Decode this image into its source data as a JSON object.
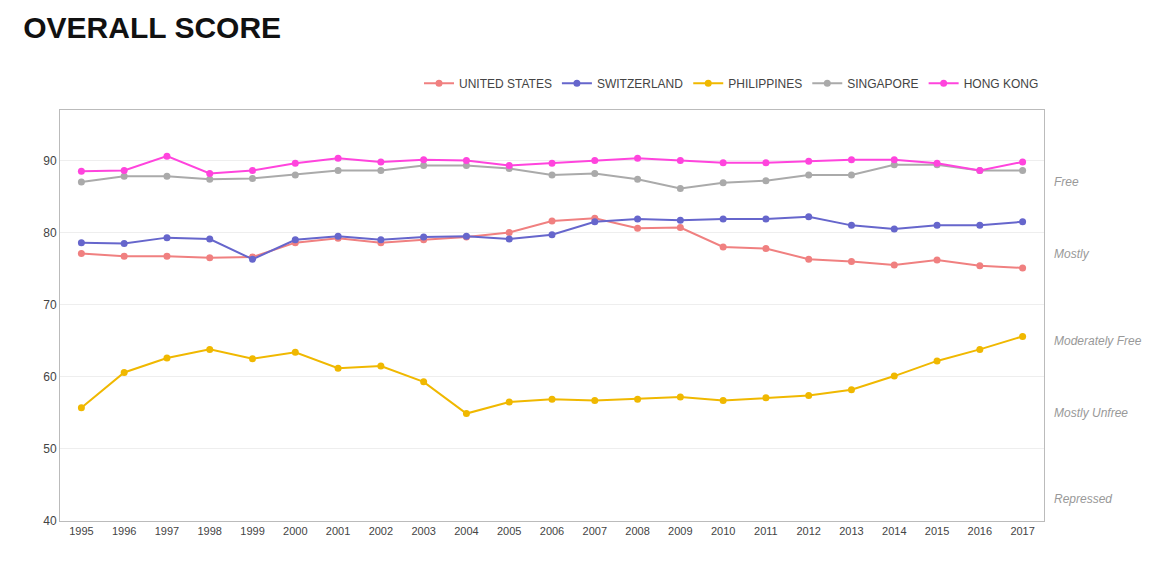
{
  "chart_data": {
    "type": "line",
    "title": "OVERALL SCORE",
    "x": [
      1995,
      1996,
      1997,
      1998,
      1999,
      2000,
      2001,
      2002,
      2003,
      2004,
      2005,
      2006,
      2007,
      2008,
      2009,
      2010,
      2011,
      2012,
      2013,
      2014,
      2015,
      2016,
      2017
    ],
    "series": [
      {
        "name": "UNITED STATES",
        "color": "#f08080",
        "values": [
          77.1,
          76.7,
          76.7,
          76.5,
          76.6,
          78.6,
          79.2,
          78.6,
          79.0,
          79.4,
          80.0,
          81.6,
          82.0,
          80.6,
          80.7,
          78.0,
          77.8,
          76.3,
          76.0,
          75.5,
          76.2,
          75.4,
          75.1
        ]
      },
      {
        "name": "SWITZERLAND",
        "color": "#6666cc",
        "values": [
          78.6,
          78.5,
          79.3,
          79.1,
          76.3,
          79.0,
          79.5,
          79.0,
          79.4,
          79.5,
          79.1,
          79.7,
          81.5,
          81.9,
          81.7,
          81.9,
          81.9,
          82.2,
          81.0,
          80.5,
          81.0,
          81.0,
          81.5
        ]
      },
      {
        "name": "PHILIPPINES",
        "color": "#f0b800",
        "values": [
          55.7,
          60.6,
          62.6,
          63.8,
          62.5,
          63.4,
          61.2,
          61.5,
          59.3,
          54.9,
          56.5,
          56.9,
          56.7,
          56.9,
          57.2,
          56.7,
          57.1,
          57.4,
          58.2,
          60.1,
          62.2,
          63.8,
          65.6
        ]
      },
      {
        "name": "SINGAPORE",
        "color": "#aaaaaa",
        "values": [
          87.0,
          87.8,
          87.8,
          87.4,
          87.5,
          88.0,
          88.6,
          88.6,
          89.3,
          89.3,
          88.9,
          88.0,
          88.2,
          87.4,
          86.1,
          86.9,
          87.2,
          88.0,
          88.0,
          89.4,
          89.4,
          88.6,
          88.6
        ]
      },
      {
        "name": "HONG KONG",
        "color": "#ff44dd",
        "values": [
          88.5,
          88.6,
          90.6,
          88.2,
          88.6,
          89.6,
          90.3,
          89.8,
          90.1,
          90.0,
          89.3,
          89.6,
          90.0,
          90.3,
          90.0,
          89.7,
          89.7,
          89.9,
          90.1,
          90.1,
          89.6,
          88.6,
          89.8
        ]
      }
    ],
    "annotations": [
      {
        "text": "Free",
        "y": 87
      },
      {
        "text": "Mostly",
        "y": 77
      },
      {
        "text": "Moderately Free",
        "y": 65
      },
      {
        "text": "Mostly Unfree",
        "y": 55
      },
      {
        "text": "Repressed",
        "y": 43
      }
    ],
    "xlim": [
      1994.5,
      2017.5
    ],
    "xticks": [
      1995,
      1996,
      1997,
      1998,
      1999,
      2000,
      2001,
      2002,
      2003,
      2004,
      2005,
      2006,
      2007,
      2008,
      2009,
      2010,
      2011,
      2012,
      2013,
      2014,
      2015,
      2016,
      2017
    ],
    "ylim": [
      40,
      97
    ],
    "yticks": [
      40,
      50,
      60,
      70,
      80,
      90
    ],
    "grid": true,
    "legend": "top right",
    "marker": "circle",
    "line_style": "solid"
  }
}
